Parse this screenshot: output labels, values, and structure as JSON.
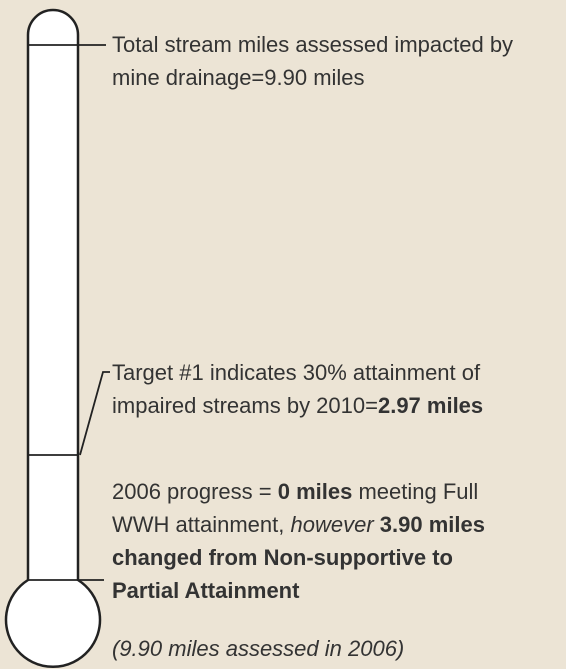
{
  "total": {
    "lines": [
      "Total stream miles assessed impacted by",
      "mine drainage=9.90 miles"
    ]
  },
  "target": {
    "lines": [
      [
        {
          "text": "Target #1 indicates 30% attainment of"
        }
      ],
      [
        {
          "text": "impaired streams by 2010="
        },
        {
          "text": "2.97 miles",
          "weight": "bold"
        }
      ]
    ]
  },
  "progress": {
    "lines": [
      [
        {
          "text": "2006 progress = "
        },
        {
          "text": "0 miles",
          "weight": "bold"
        },
        {
          "text": " meeting Full"
        }
      ],
      [
        {
          "text": "WWH attainment, "
        },
        {
          "text": "however",
          "style": "italic"
        },
        {
          "text": " "
        },
        {
          "text": "3.90 miles",
          "weight": "bold"
        }
      ],
      [
        {
          "text": "changed from Non-supportive to",
          "weight": "bold"
        }
      ],
      [
        {
          "text": "Partial Attainment",
          "weight": "bold"
        }
      ]
    ]
  },
  "note": "(9.90 miles assessed in 2006)"
}
